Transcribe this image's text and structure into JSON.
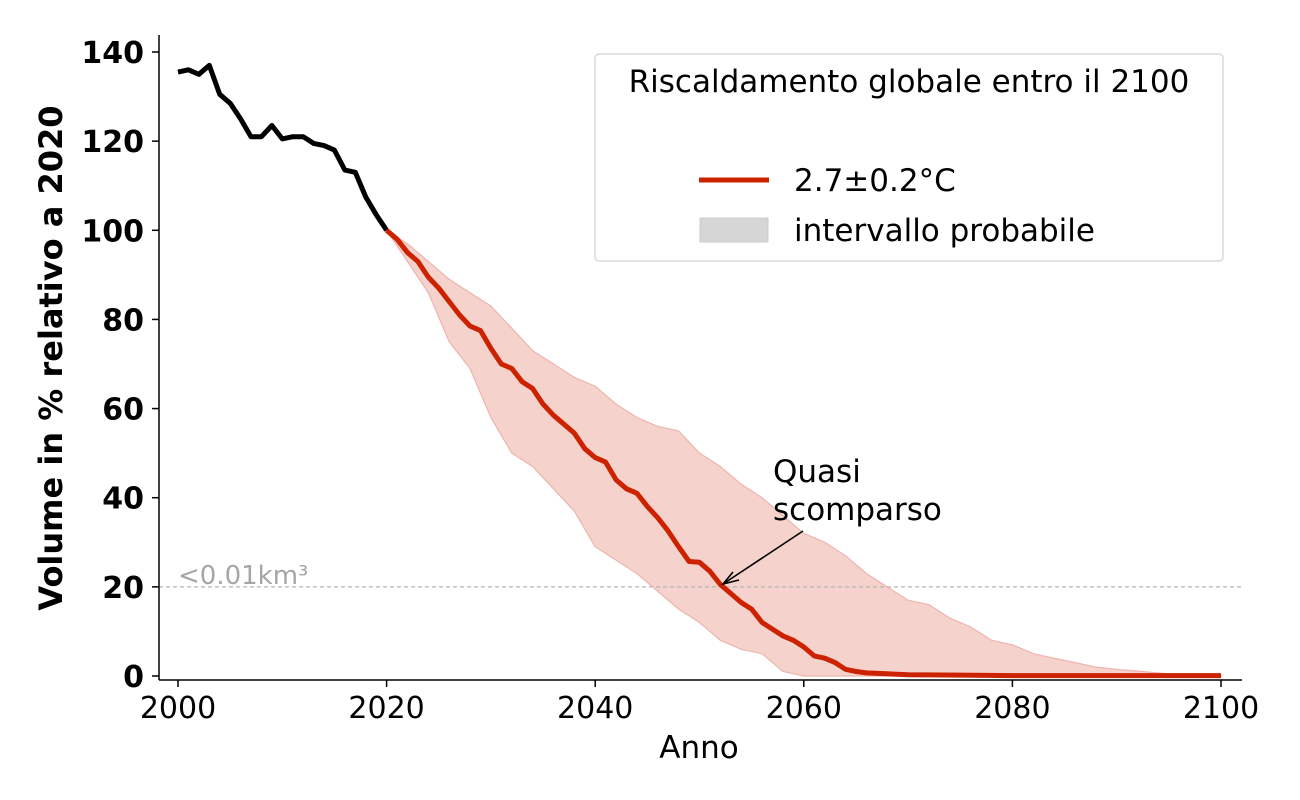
{
  "chart_data": {
    "type": "line",
    "title": "",
    "xlabel": "Anno",
    "ylabel": "Volume in % relativo a 2020",
    "xlim": [
      1998,
      2102
    ],
    "ylim": [
      -1,
      144
    ],
    "x_ticks": [
      2000,
      2020,
      2040,
      2060,
      2080,
      2100
    ],
    "y_ticks": [
      0,
      20,
      40,
      60,
      80,
      100,
      120,
      140
    ],
    "grid": false,
    "legend": {
      "title": "Riscaldamento globale entro il 2100",
      "position": "top-right",
      "entries": [
        {
          "label": "2.7±0.2°C",
          "type": "line",
          "color": "#cc2200"
        },
        {
          "label": "intervallo probabile",
          "type": "patch",
          "color": "#d6d6d6"
        }
      ]
    },
    "reference_line": {
      "y": 20,
      "label": "<0.01km³",
      "color": "#b3b3b3",
      "style": "dashed"
    },
    "annotation": {
      "lines": [
        "Quasi",
        "scomparso"
      ],
      "target": {
        "x": 2052,
        "y": 20
      },
      "text_anchor": {
        "x": 2057,
        "y": 39
      }
    },
    "series": [
      {
        "name": "observed",
        "color": "#000000",
        "x": [
          2000,
          2001,
          2002,
          2003,
          2004,
          2005,
          2006,
          2007,
          2008,
          2009,
          2010,
          2011,
          2012,
          2013,
          2014,
          2015,
          2016,
          2017,
          2018,
          2019,
          2020
        ],
        "values": [
          135.5,
          136,
          135,
          137,
          130.5,
          128.5,
          125,
          121,
          121,
          123.5,
          120.5,
          121,
          121,
          119.5,
          119,
          118,
          113.5,
          113,
          107.5,
          103.5,
          100
        ]
      },
      {
        "name": "2.7±0.2°C",
        "color": "#cc2200",
        "x": [
          2020,
          2021,
          2022,
          2023,
          2024,
          2025,
          2026,
          2027,
          2028,
          2029,
          2030,
          2031,
          2032,
          2033,
          2034,
          2035,
          2036,
          2037,
          2038,
          2039,
          2040,
          2041,
          2042,
          2043,
          2044,
          2045,
          2046,
          2047,
          2048,
          2049,
          2050,
          2051,
          2052,
          2053,
          2054,
          2055,
          2056,
          2057,
          2058,
          2059,
          2060,
          2061,
          2062,
          2063,
          2064,
          2065,
          2066,
          2068,
          2070,
          2075,
          2080,
          2090,
          2100
        ],
        "values": [
          100,
          98,
          95,
          93,
          89.5,
          87,
          84,
          81,
          78.5,
          77.5,
          73.5,
          70,
          69,
          66,
          64.5,
          61,
          58.5,
          56.5,
          54.5,
          51,
          49,
          48,
          44,
          42,
          41,
          38,
          35.5,
          32.5,
          29,
          25.7,
          25.5,
          23.5,
          20.5,
          18.5,
          16.5,
          15,
          12,
          10.5,
          9,
          8,
          6.5,
          4.5,
          4,
          3,
          1.5,
          1,
          0.7,
          0.5,
          0.3,
          0.2,
          0.1,
          0.1,
          0.1
        ]
      },
      {
        "name": "intervallo probabile",
        "color": "#f6d2cd",
        "x": [
          2020,
          2022,
          2024,
          2026,
          2028,
          2030,
          2032,
          2034,
          2036,
          2038,
          2040,
          2042,
          2044,
          2046,
          2048,
          2050,
          2052,
          2054,
          2056,
          2058,
          2060,
          2062,
          2064,
          2066,
          2068,
          2070,
          2072,
          2074,
          2076,
          2078,
          2080,
          2082,
          2084,
          2086,
          2088,
          2090,
          2095,
          2100
        ],
        "lower": [
          100,
          93,
          86,
          75,
          69,
          58,
          50,
          47,
          42,
          37,
          29,
          26,
          23,
          19,
          15,
          12,
          8,
          6,
          5,
          1,
          0,
          0,
          0,
          0,
          0,
          0,
          0,
          0,
          0,
          0,
          0,
          0,
          0,
          0,
          0,
          0,
          0,
          0
        ],
        "upper": [
          100,
          97,
          93,
          89,
          86,
          83,
          78,
          73,
          70,
          67,
          65,
          61,
          58,
          56,
          55,
          50,
          47,
          43,
          40,
          36,
          32,
          30,
          27,
          23,
          20,
          17,
          16,
          13,
          11,
          8,
          7,
          5,
          4,
          3,
          2,
          1.5,
          0.5,
          0.1
        ]
      }
    ]
  }
}
